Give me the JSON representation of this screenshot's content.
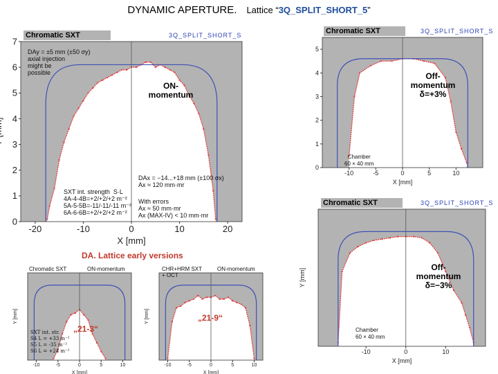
{
  "header": {
    "title": "DYNAMIC APERTURE.",
    "lattice_prefix": "Lattice “",
    "lattice_name": "3Q_SPLIT_SHORT_5",
    "lattice_suffix": "”"
  },
  "section_title": "DA.  Lattice early versions",
  "colors": {
    "aperture_fill": "#b3b3b3",
    "stable_region": "#ffffff",
    "boundary": "#e04040",
    "chamber": "#3f51b5",
    "accent_text": "#c0392b"
  },
  "chart_data": [
    {
      "id": "main-on",
      "type": "area",
      "panel_label": "Chromatic SXT",
      "lattice_label": "3Q_SPLIT_SHORT_S",
      "xlabel": "X [mm]",
      "ylabel": "Y [mm]",
      "xlim": [
        -23,
        23
      ],
      "ylim": [
        0,
        7
      ],
      "xticks": [
        -20,
        -10,
        0,
        10,
        20
      ],
      "yticks": [
        0,
        1,
        2,
        3,
        4,
        5,
        6,
        7
      ],
      "series": [
        {
          "x": [
            -17.5,
            -17,
            -16,
            -15,
            -14,
            -13,
            -12,
            -11,
            -10,
            -9,
            -8,
            -7,
            -6,
            -5,
            -4,
            -3,
            -2,
            -1,
            0,
            1,
            2,
            3,
            4,
            5,
            6,
            7,
            8,
            9,
            10,
            11,
            12,
            13,
            14,
            15,
            16,
            17,
            17.5
          ],
          "y": [
            0.1,
            0.6,
            1.3,
            2.4,
            3.1,
            3.6,
            4.1,
            4.4,
            4.7,
            5.0,
            5.2,
            5.4,
            5.5,
            5.6,
            5.7,
            5.8,
            5.9,
            5.9,
            6.0,
            6.0,
            6.1,
            6.2,
            6.2,
            6.0,
            6.1,
            6.0,
            5.9,
            5.8,
            5.5,
            5.3,
            4.9,
            4.6,
            4.2,
            3.6,
            2.6,
            1.2,
            0.1
          ]
        }
      ],
      "chamber": {
        "x_half": 17.8,
        "y_top": 6.1
      },
      "annotations": {
        "injection": [
          "DAy = ±5 mm (±50 σy)",
          "axial injection",
          "might be",
          "possible"
        ],
        "state": [
          "ON-",
          "momentum"
        ],
        "sxt": [
          "SXT int. strength  S·L",
          "4A-4-4B=+2/+2/+2 m⁻²",
          "5A-5-5B=-11/-11/-11 m⁻²",
          "6A-6-6B=+2/+2/+2 m⁻²"
        ],
        "dax": [
          "DAx = −14...+18 mm (±100 σx)",
          "Ax ≈ 120 mm·mr"
        ],
        "errors": [
          "With errors",
          "Ax ≈ 50 mm·mr",
          "Ax (MAX-IV) < 10 mm·mr"
        ]
      }
    },
    {
      "id": "off-plus",
      "type": "area",
      "panel_label": "Chromatic SXT",
      "lattice_label": "3Q_SPLIT_SHORT_S",
      "xlabel": "X [mm]",
      "ylabel": "",
      "xlim": [
        -15,
        15
      ],
      "ylim": [
        0,
        5.5
      ],
      "xticks": [
        -10,
        -5,
        0,
        5,
        10
      ],
      "yticks": [
        0,
        1,
        2,
        3,
        4,
        5
      ],
      "series": [
        {
          "x": [
            -10,
            -9,
            -8,
            -6,
            -4,
            -2,
            0,
            2,
            4,
            6,
            8,
            9,
            10,
            11,
            12
          ],
          "y": [
            0.5,
            3.0,
            4.0,
            4.3,
            4.5,
            4.5,
            4.6,
            4.6,
            4.5,
            4.4,
            3.8,
            2.8,
            1.5,
            0.8,
            0.2
          ]
        }
      ],
      "chamber": {
        "x_half": 12.2,
        "y_top": 4.6
      },
      "annotations": {
        "state": [
          "Off-",
          "momentum",
          "δ=+3%"
        ],
        "chamber": [
          "Chamber",
          "60 × 40 mm"
        ]
      }
    },
    {
      "id": "off-minus",
      "type": "area",
      "panel_label": "Chromatic SXT",
      "lattice_label": "3Q_SPLIT_SHORT_S",
      "xlabel": "X [mm]",
      "ylabel": "Y [mm]",
      "xlim": [
        -22,
        20
      ],
      "ylim": [
        0,
        11
      ],
      "xticks": [
        -10,
        0,
        10
      ],
      "yticks": [],
      "series": [
        {
          "x": [
            -17,
            -16,
            -14,
            -12,
            -10,
            -8,
            -6,
            -4,
            -2,
            0,
            2,
            4,
            6,
            8,
            10,
            12,
            14,
            15,
            16,
            17
          ],
          "y": [
            0.3,
            6.0,
            7.5,
            8.0,
            8.3,
            8.5,
            8.6,
            8.7,
            8.8,
            8.8,
            8.8,
            8.7,
            8.3,
            7.5,
            6.0,
            4.5,
            3.5,
            2.5,
            1.5,
            0.3
          ]
        }
      ],
      "chamber": {
        "x_half": 17,
        "y_top": 9.2
      },
      "annotations": {
        "state": [
          "Off-",
          "momentum",
          "δ=−3%"
        ],
        "chamber": [
          "Chamber",
          "60 × 40 mm"
        ]
      }
    },
    {
      "id": "early-21-3",
      "type": "area",
      "panel_label": "Chromatic SXT",
      "state_label": "ON-momentum",
      "xlabel": "X [mm]",
      "ylabel": "Y [mm]",
      "xlim": [
        -12,
        12
      ],
      "ylim": [
        0,
        5
      ],
      "xticks": [
        -10,
        -5,
        0,
        5,
        10
      ],
      "yticks": [],
      "series": [
        {
          "x": [
            -6,
            -5,
            -4,
            -3,
            -2,
            -1,
            0,
            1,
            2,
            3,
            4,
            5,
            6
          ],
          "y": [
            0.1,
            0.6,
            1.5,
            2.2,
            2.6,
            2.7,
            2.9,
            2.6,
            2.3,
            1.5,
            1.0,
            0.5,
            0.1
          ]
        }
      ],
      "chamber": {
        "x_half": 10.5,
        "y_top": 4.3
      },
      "annotations": {
        "version": "„21-3“",
        "sxt": [
          "SXT int. str.",
          "S4 L = +33 m⁻²",
          "S5 L = -35 m⁻²",
          "S6 L = +24 m⁻²"
        ]
      }
    },
    {
      "id": "early-21-9",
      "type": "area",
      "panel_label": "CHR+HRM SXT",
      "panel_sublabel": "+ OCT",
      "state_label": "ON-momentum",
      "xlabel": "X [mm]",
      "ylabel": "Y [mm]",
      "xlim": [
        -12,
        12
      ],
      "ylim": [
        0,
        5
      ],
      "xticks": [
        -10,
        -5,
        0,
        5,
        10
      ],
      "yticks": [],
      "series": [
        {
          "x": [
            -10,
            -9,
            -8,
            -7,
            -6,
            -5,
            -4,
            -3,
            -2,
            -1,
            0,
            1,
            2,
            3,
            4,
            5,
            6,
            7,
            8,
            9,
            10
          ],
          "y": [
            0.1,
            2.2,
            3.0,
            3.1,
            3.3,
            3.4,
            3.5,
            3.7,
            3.5,
            3.6,
            3.6,
            3.7,
            3.5,
            3.5,
            3.6,
            3.4,
            3.3,
            3.2,
            3.0,
            2.0,
            0.1
          ]
        }
      ],
      "chamber": {
        "x_half": 10.5,
        "y_top": 4.3
      },
      "annotations": {
        "version": "„21-9“"
      }
    }
  ]
}
